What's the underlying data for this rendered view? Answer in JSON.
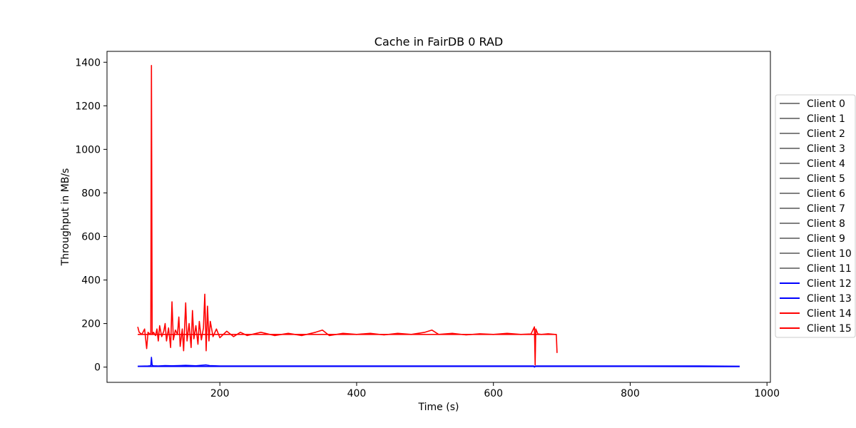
{
  "chart_data": {
    "type": "line",
    "title": "Cache in  FairDB 0 RAD",
    "xlabel": "Time (s)",
    "ylabel": "Throughput in MB/s",
    "xlim": [
      35,
      1005
    ],
    "ylim": [
      -70,
      1450
    ],
    "xticks": [
      200,
      400,
      600,
      800,
      1000
    ],
    "yticks": [
      0,
      200,
      400,
      600,
      800,
      1000,
      1200,
      1400
    ],
    "legend_position": "center-right outside",
    "grid": false,
    "series": [
      {
        "name": "Client 0",
        "color": "#808080",
        "points": []
      },
      {
        "name": "Client 1",
        "color": "#808080",
        "points": []
      },
      {
        "name": "Client 2",
        "color": "#808080",
        "points": []
      },
      {
        "name": "Client 3",
        "color": "#808080",
        "points": []
      },
      {
        "name": "Client 4",
        "color": "#808080",
        "points": []
      },
      {
        "name": "Client 5",
        "color": "#808080",
        "points": []
      },
      {
        "name": "Client 6",
        "color": "#808080",
        "points": []
      },
      {
        "name": "Client 7",
        "color": "#808080",
        "points": []
      },
      {
        "name": "Client 8",
        "color": "#808080",
        "points": []
      },
      {
        "name": "Client 9",
        "color": "#808080",
        "points": []
      },
      {
        "name": "Client 10",
        "color": "#808080",
        "points": []
      },
      {
        "name": "Client 11",
        "color": "#808080",
        "points": []
      },
      {
        "name": "Client 12",
        "color": "#0000ff",
        "points": [
          [
            80,
            4
          ],
          [
            95,
            5
          ],
          [
            99,
            6
          ],
          [
            100,
            45
          ],
          [
            101,
            8
          ],
          [
            103,
            6
          ],
          [
            110,
            5
          ],
          [
            120,
            7
          ],
          [
            130,
            6
          ],
          [
            150,
            8
          ],
          [
            165,
            6
          ],
          [
            180,
            10
          ],
          [
            185,
            7
          ],
          [
            200,
            5
          ],
          [
            300,
            5
          ],
          [
            400,
            5
          ],
          [
            500,
            5
          ],
          [
            600,
            5
          ],
          [
            659,
            5
          ],
          [
            660,
            0
          ],
          [
            662,
            5
          ],
          [
            700,
            5
          ],
          [
            800,
            5
          ],
          [
            900,
            5
          ],
          [
            960,
            4
          ]
        ]
      },
      {
        "name": "Client 13",
        "color": "#0000ff",
        "points": [
          [
            80,
            3
          ],
          [
            200,
            3
          ],
          [
            400,
            3
          ],
          [
            600,
            3
          ],
          [
            800,
            3
          ],
          [
            960,
            2
          ]
        ]
      },
      {
        "name": "Client 14",
        "color": "#ff0000",
        "points": [
          [
            80,
            185
          ],
          [
            82,
            160
          ],
          [
            86,
            150
          ],
          [
            90,
            175
          ],
          [
            93,
            85
          ],
          [
            95,
            160
          ],
          [
            98,
            150
          ],
          [
            99,
            155
          ],
          [
            100,
            1385
          ],
          [
            101,
            150
          ],
          [
            103,
            160
          ],
          [
            106,
            145
          ],
          [
            108,
            175
          ],
          [
            110,
            120
          ],
          [
            112,
            190
          ],
          [
            115,
            140
          ],
          [
            118,
            165
          ],
          [
            120,
            200
          ],
          [
            122,
            120
          ],
          [
            125,
            180
          ],
          [
            128,
            90
          ],
          [
            130,
            300
          ],
          [
            132,
            125
          ],
          [
            135,
            170
          ],
          [
            138,
            150
          ],
          [
            140,
            230
          ],
          [
            142,
            95
          ],
          [
            145,
            175
          ],
          [
            147,
            75
          ],
          [
            150,
            295
          ],
          [
            152,
            120
          ],
          [
            155,
            200
          ],
          [
            158,
            90
          ],
          [
            160,
            260
          ],
          [
            162,
            130
          ],
          [
            165,
            190
          ],
          [
            168,
            105
          ],
          [
            170,
            210
          ],
          [
            173,
            125
          ],
          [
            176,
            180
          ],
          [
            178,
            335
          ],
          [
            180,
            75
          ],
          [
            182,
            280
          ],
          [
            184,
            120
          ],
          [
            186,
            210
          ],
          [
            190,
            140
          ],
          [
            195,
            175
          ],
          [
            200,
            135
          ],
          [
            210,
            165
          ],
          [
            220,
            140
          ],
          [
            230,
            160
          ],
          [
            240,
            145
          ],
          [
            260,
            160
          ],
          [
            280,
            145
          ],
          [
            300,
            155
          ],
          [
            320,
            145
          ],
          [
            340,
            160
          ],
          [
            350,
            170
          ],
          [
            360,
            145
          ],
          [
            380,
            155
          ],
          [
            400,
            150
          ],
          [
            420,
            155
          ],
          [
            440,
            148
          ],
          [
            460,
            155
          ],
          [
            480,
            150
          ],
          [
            500,
            160
          ],
          [
            510,
            170
          ],
          [
            520,
            150
          ],
          [
            540,
            155
          ],
          [
            560,
            148
          ],
          [
            580,
            153
          ],
          [
            600,
            150
          ],
          [
            620,
            155
          ],
          [
            640,
            150
          ],
          [
            655,
            152
          ],
          [
            660,
            185
          ],
          [
            661,
            10
          ],
          [
            662,
            175
          ],
          [
            665,
            152
          ],
          [
            670,
            150
          ],
          [
            680,
            153
          ],
          [
            690,
            150
          ],
          [
            692,
            150
          ],
          [
            693,
            65
          ]
        ]
      },
      {
        "name": "Client 15",
        "color": "#ff0000",
        "points": [
          [
            80,
            150
          ],
          [
            200,
            150
          ],
          [
            400,
            150
          ],
          [
            600,
            150
          ],
          [
            692,
            150
          ]
        ]
      }
    ]
  }
}
